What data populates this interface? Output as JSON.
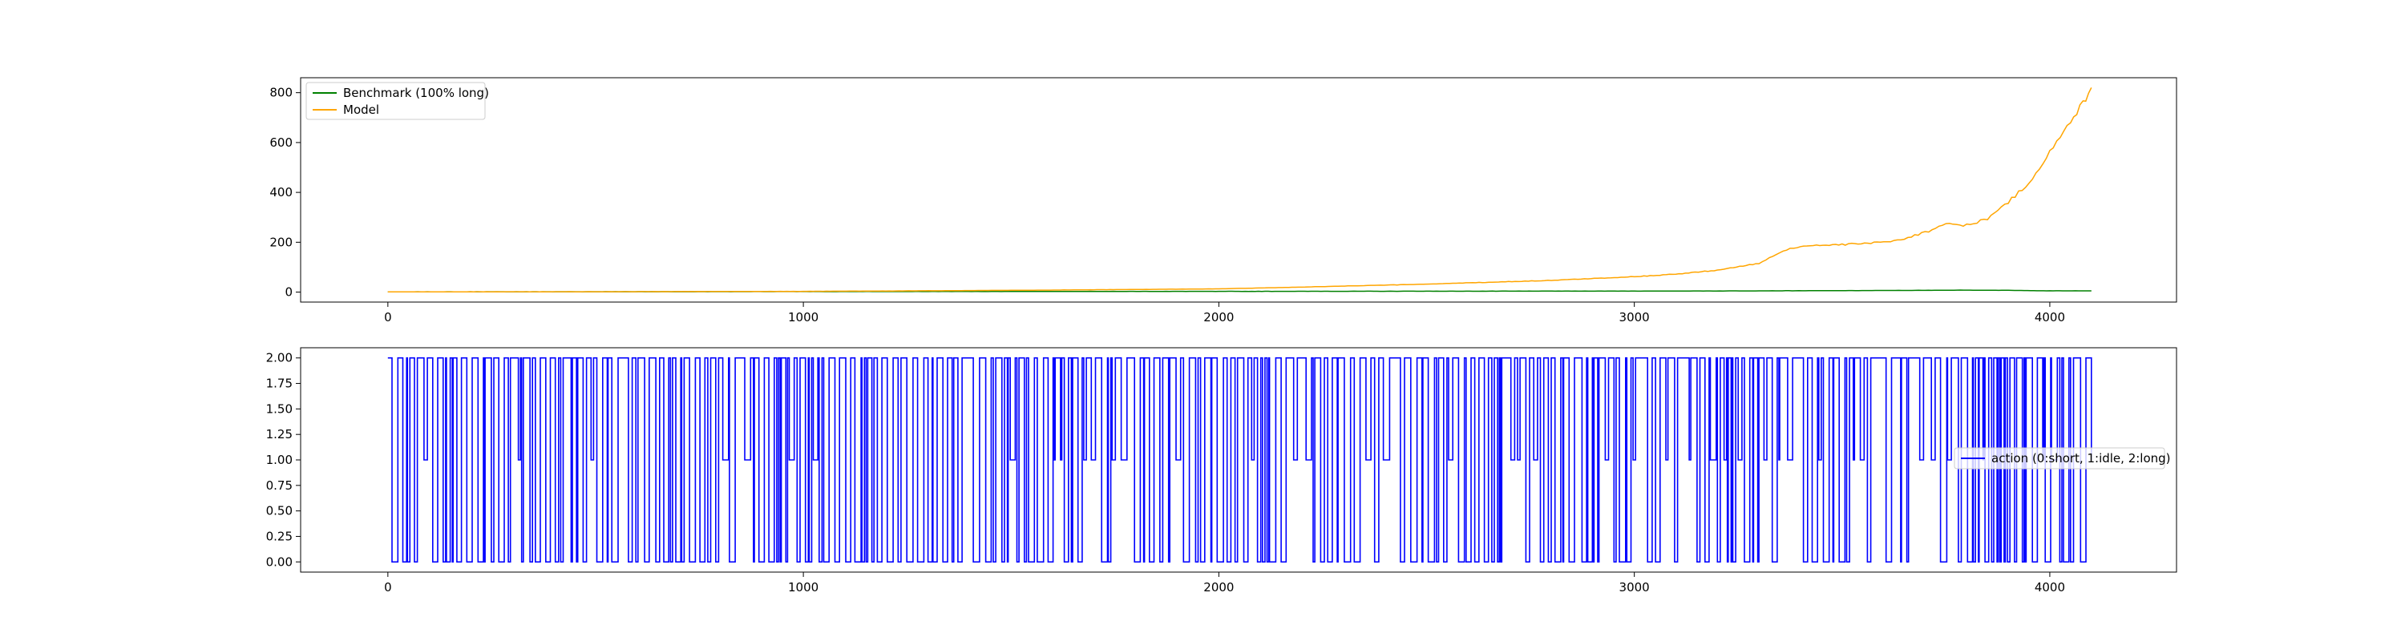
{
  "chart_data": [
    {
      "type": "line",
      "title": "",
      "xlabel": "",
      "ylabel": "",
      "xlim": [
        -210,
        4305
      ],
      "ylim": [
        -40,
        860
      ],
      "xticks": [
        0,
        1000,
        2000,
        3000,
        4000
      ],
      "yticks": [
        0,
        200,
        400,
        600,
        800
      ],
      "grid": false,
      "legend_position": "upper-left",
      "series": [
        {
          "name": "Benchmark (100% long)",
          "color": "#008000",
          "points": [
            [
              0,
              1
            ],
            [
              500,
              1.5
            ],
            [
              1000,
              2
            ],
            [
              1500,
              2.5
            ],
            [
              2000,
              3
            ],
            [
              2500,
              3.5
            ],
            [
              3000,
              4
            ],
            [
              3300,
              5
            ],
            [
              3500,
              6
            ],
            [
              3700,
              7
            ],
            [
              3800,
              8
            ],
            [
              3900,
              7
            ],
            [
              4000,
              5
            ],
            [
              4100,
              5
            ]
          ]
        },
        {
          "name": "Model",
          "color": "#ffa500",
          "points": [
            [
              0,
              1
            ],
            [
              500,
              1.5
            ],
            [
              1000,
              3
            ],
            [
              1500,
              7
            ],
            [
              2000,
              13
            ],
            [
              2200,
              20
            ],
            [
              2500,
              32
            ],
            [
              2800,
              47
            ],
            [
              3000,
              62
            ],
            [
              3100,
              72
            ],
            [
              3200,
              88
            ],
            [
              3300,
              115
            ],
            [
              3350,
              160
            ],
            [
              3400,
              185
            ],
            [
              3500,
              190
            ],
            [
              3600,
              200
            ],
            [
              3650,
              215
            ],
            [
              3700,
              240
            ],
            [
              3750,
              275
            ],
            [
              3800,
              268
            ],
            [
              3850,
              295
            ],
            [
              3900,
              360
            ],
            [
              3950,
              440
            ],
            [
              4000,
              560
            ],
            [
              4050,
              680
            ],
            [
              4080,
              760
            ],
            [
              4100,
              820
            ]
          ]
        }
      ]
    },
    {
      "type": "line",
      "step": true,
      "title": "",
      "xlabel": "",
      "ylabel": "",
      "xlim": [
        -210,
        4305
      ],
      "ylim": [
        -0.1,
        2.1
      ],
      "xticks": [
        0,
        1000,
        2000,
        3000,
        4000
      ],
      "yticks": [
        0.0,
        0.25,
        0.5,
        0.75,
        1.0,
        1.25,
        1.5,
        1.75,
        2.0
      ],
      "ytick_labels": [
        "0.00",
        "0.25",
        "0.50",
        "0.75",
        "1.00",
        "1.25",
        "1.50",
        "1.75",
        "2.00"
      ],
      "grid": false,
      "legend_position": "center-right",
      "series": [
        {
          "name": "action (0:short, 1:idle, 2:long)",
          "color": "#0000ff",
          "x_range": [
            0,
            4100
          ]
        }
      ]
    }
  ]
}
